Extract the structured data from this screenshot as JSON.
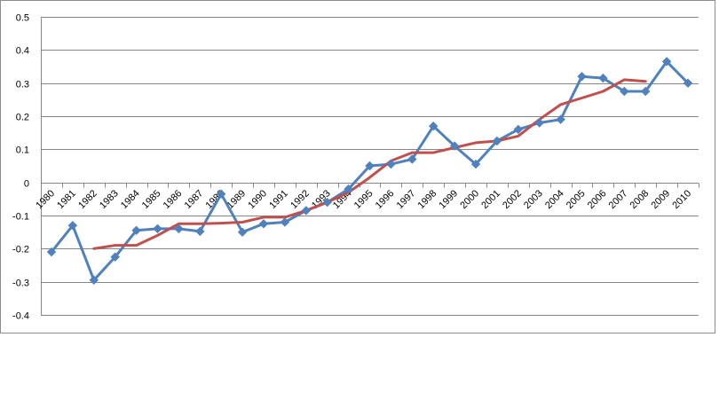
{
  "chart_data": {
    "type": "line",
    "title": "",
    "xlabel": "",
    "ylabel": "",
    "ylim": [
      -0.4,
      0.5
    ],
    "y_ticks": [
      0.5,
      0.4,
      0.3,
      0.2,
      0.1,
      0,
      -0.1,
      -0.2,
      -0.3,
      -0.4
    ],
    "y_tick_labels": [
      "0.5",
      "0.4",
      "0.3",
      "0.2",
      "0.1",
      "0",
      "-0.1",
      "-0.2",
      "-0.3",
      "-0.4"
    ],
    "grid": "horizontal",
    "legend": "none",
    "categories": [
      "1980",
      "1981",
      "1982",
      "1983",
      "1984",
      "1985",
      "1986",
      "1987",
      "1988",
      "1989",
      "1990",
      "1991",
      "1992",
      "1993",
      "1994",
      "1995",
      "1996",
      "1997",
      "1998",
      "1999",
      "2000",
      "2001",
      "2002",
      "2003",
      "2004",
      "2005",
      "2006",
      "2007",
      "2008",
      "2009",
      "2010"
    ],
    "series": [
      {
        "color": "#4F81BD",
        "marker": "diamond",
        "values": [
          -0.21,
          -0.13,
          -0.295,
          -0.225,
          -0.145,
          -0.14,
          -0.14,
          -0.148,
          -0.035,
          -0.15,
          -0.125,
          -0.12,
          -0.085,
          -0.06,
          -0.02,
          0.05,
          0.055,
          0.07,
          0.17,
          0.11,
          0.055,
          0.125,
          0.16,
          0.18,
          0.19,
          0.32,
          0.315,
          0.275,
          0.275,
          0.365,
          0.3
        ]
      },
      {
        "color": "#C0504D",
        "marker": "none",
        "values": [
          null,
          null,
          -0.2,
          -0.19,
          -0.19,
          -0.16,
          -0.125,
          -0.125,
          -0.123,
          -0.12,
          -0.105,
          -0.105,
          -0.085,
          -0.06,
          -0.03,
          0.015,
          0.065,
          0.09,
          0.09,
          0.105,
          0.12,
          0.125,
          0.14,
          0.19,
          0.235,
          0.255,
          0.275,
          0.31,
          0.305,
          null,
          null
        ]
      }
    ]
  }
}
